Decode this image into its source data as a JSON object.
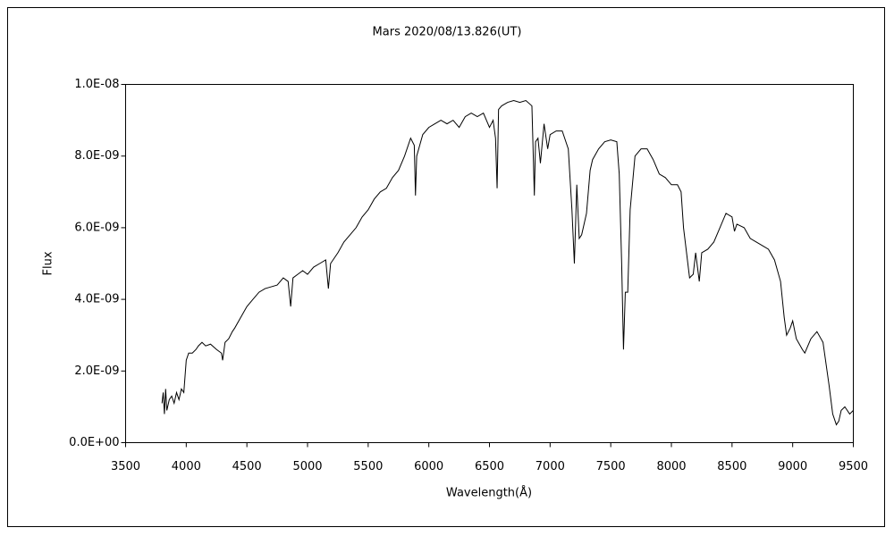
{
  "chart_data": {
    "type": "line",
    "title": "Mars   2020/08/13.826(UT)",
    "x_label": "Wavelength(Å)",
    "y_label": "Flux",
    "xlim": [
      3500,
      9500
    ],
    "xticks": [
      3500,
      4000,
      4500,
      5000,
      5500,
      6000,
      6500,
      7000,
      7500,
      8000,
      8500,
      9000,
      9500
    ],
    "ylim": [
      0,
      1e-08
    ],
    "yticks": [
      {
        "value": 0,
        "label": "0.0E+00"
      },
      {
        "value": 2e-09,
        "label": "2.0E-09"
      },
      {
        "value": 4e-09,
        "label": "4.0E-09"
      },
      {
        "value": 6e-09,
        "label": "6.0E-09"
      },
      {
        "value": 8e-09,
        "label": "8.0E-09"
      },
      {
        "value": 1e-08,
        "label": "1.0E-08"
      }
    ],
    "series": [
      {
        "color": "#000000",
        "x": [
          3800,
          3810,
          3820,
          3830,
          3840,
          3860,
          3880,
          3900,
          3920,
          3940,
          3960,
          3980,
          4000,
          4020,
          4050,
          4080,
          4100,
          4130,
          4160,
          4200,
          4250,
          4290,
          4300,
          4320,
          4350,
          4380,
          4400,
          4450,
          4500,
          4550,
          4600,
          4650,
          4700,
          4750,
          4800,
          4840,
          4861,
          4880,
          4920,
          4960,
          5000,
          5050,
          5100,
          5150,
          5172,
          5190,
          5250,
          5300,
          5350,
          5400,
          5450,
          5500,
          5550,
          5600,
          5650,
          5700,
          5750,
          5800,
          5850,
          5880,
          5890,
          5900,
          5950,
          6000,
          6050,
          6100,
          6150,
          6200,
          6250,
          6300,
          6350,
          6400,
          6450,
          6500,
          6530,
          6550,
          6563,
          6575,
          6600,
          6650,
          6700,
          6750,
          6800,
          6850,
          6870,
          6880,
          6900,
          6920,
          6950,
          6980,
          7000,
          7050,
          7100,
          7150,
          7180,
          7200,
          7220,
          7240,
          7260,
          7300,
          7330,
          7350,
          7400,
          7450,
          7500,
          7550,
          7570,
          7590,
          7605,
          7620,
          7640,
          7660,
          7700,
          7750,
          7800,
          7850,
          7900,
          7950,
          8000,
          8050,
          8080,
          8100,
          8150,
          8180,
          8200,
          8230,
          8250,
          8300,
          8350,
          8400,
          8450,
          8500,
          8520,
          8540,
          8600,
          8650,
          8700,
          8750,
          8800,
          8850,
          8900,
          8930,
          8950,
          8980,
          9000,
          9030,
          9080,
          9100,
          9150,
          9200,
          9250,
          9300,
          9330,
          9360,
          9380,
          9400,
          9430,
          9470,
          9500
        ],
        "values": [
          1.1e-09,
          1.4e-09,
          8e-10,
          1.5e-09,
          9e-10,
          1.2e-09,
          1.3e-09,
          1.1e-09,
          1.4e-09,
          1.2e-09,
          1.5e-09,
          1.4e-09,
          2.3e-09,
          2.5e-09,
          2.5e-09,
          2.6e-09,
          2.7e-09,
          2.8e-09,
          2.7e-09,
          2.75e-09,
          2.6e-09,
          2.5e-09,
          2.3e-09,
          2.8e-09,
          2.9e-09,
          3.1e-09,
          3.2e-09,
          3.5e-09,
          3.8e-09,
          4e-09,
          4.2e-09,
          4.3e-09,
          4.35e-09,
          4.4e-09,
          4.6e-09,
          4.5e-09,
          3.8e-09,
          4.6e-09,
          4.7e-09,
          4.8e-09,
          4.7e-09,
          4.9e-09,
          5e-09,
          5.1e-09,
          4.3e-09,
          5e-09,
          5.3e-09,
          5.6e-09,
          5.8e-09,
          6e-09,
          6.3e-09,
          6.5e-09,
          6.8e-09,
          7e-09,
          7.1e-09,
          7.4e-09,
          7.6e-09,
          8e-09,
          8.5e-09,
          8.3e-09,
          6.9e-09,
          8e-09,
          8.6e-09,
          8.8e-09,
          8.9e-09,
          9e-09,
          8.9e-09,
          9e-09,
          8.8e-09,
          9.1e-09,
          9.2e-09,
          9.1e-09,
          9.2e-09,
          8.8e-09,
          9e-09,
          8.5e-09,
          7.1e-09,
          9.3e-09,
          9.4e-09,
          9.5e-09,
          9.55e-09,
          9.5e-09,
          9.55e-09,
          9.4e-09,
          6.9e-09,
          8.4e-09,
          8.5e-09,
          7.8e-09,
          8.9e-09,
          8.2e-09,
          8.6e-09,
          8.7e-09,
          8.7e-09,
          8.2e-09,
          6.5e-09,
          5e-09,
          7.2e-09,
          5.7e-09,
          5.8e-09,
          6.4e-09,
          7.6e-09,
          7.9e-09,
          8.2e-09,
          8.4e-09,
          8.45e-09,
          8.4e-09,
          7.5e-09,
          5e-09,
          2.6e-09,
          4.2e-09,
          4.2e-09,
          6.5e-09,
          8e-09,
          8.2e-09,
          8.2e-09,
          7.9e-09,
          7.5e-09,
          7.4e-09,
          7.2e-09,
          7.2e-09,
          7e-09,
          6e-09,
          4.6e-09,
          4.7e-09,
          5.3e-09,
          4.5e-09,
          5.3e-09,
          5.4e-09,
          5.6e-09,
          6e-09,
          6.4e-09,
          6.3e-09,
          5.9e-09,
          6.1e-09,
          6e-09,
          5.7e-09,
          5.6e-09,
          5.5e-09,
          5.4e-09,
          5.1e-09,
          4.5e-09,
          3.5e-09,
          3e-09,
          3.2e-09,
          3.4e-09,
          2.9e-09,
          2.6e-09,
          2.5e-09,
          2.9e-09,
          3.1e-09,
          2.8e-09,
          1.6e-09,
          8e-10,
          5e-10,
          6e-10,
          9e-10,
          1e-09,
          8e-10,
          9e-10
        ]
      }
    ]
  }
}
